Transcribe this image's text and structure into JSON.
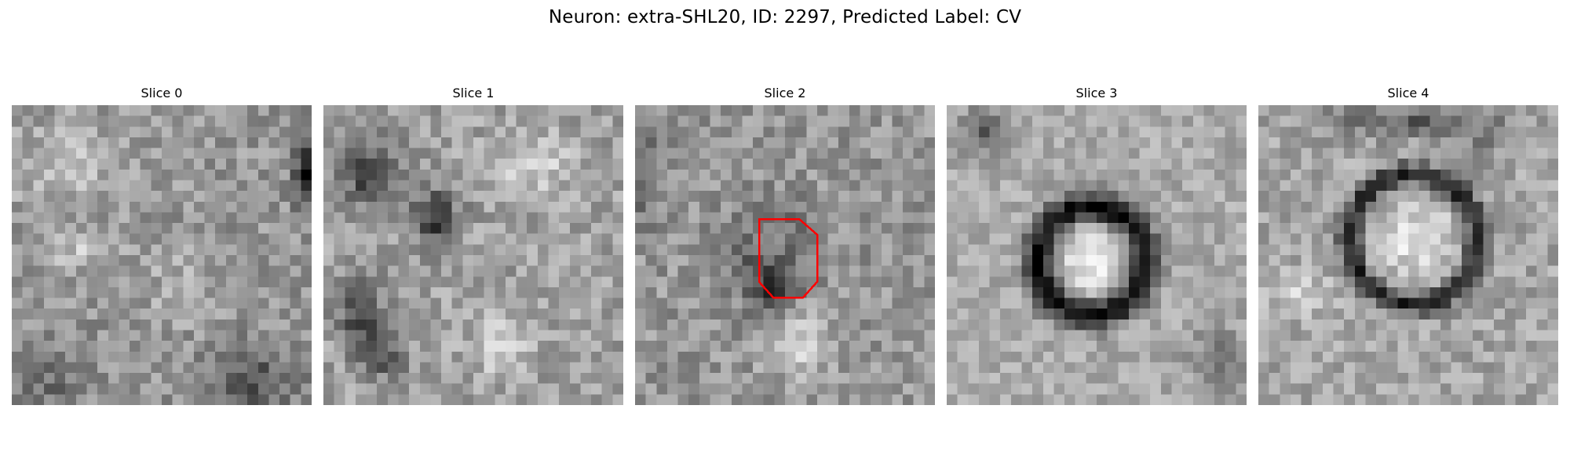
{
  "figure": {
    "title": "Neuron: extra-SHL20, ID: 2297, Predicted Label: CV"
  },
  "slices": [
    {
      "title": "Slice 0"
    },
    {
      "title": "Slice 1"
    },
    {
      "title": "Slice 2"
    },
    {
      "title": "Slice 3"
    },
    {
      "title": "Slice 4"
    }
  ],
  "overlay": {
    "slice_index": 2,
    "shape": "octagon-outline",
    "color": "#ff0000"
  },
  "image_style": {
    "colormap": "grayscale",
    "pixelated": true
  }
}
